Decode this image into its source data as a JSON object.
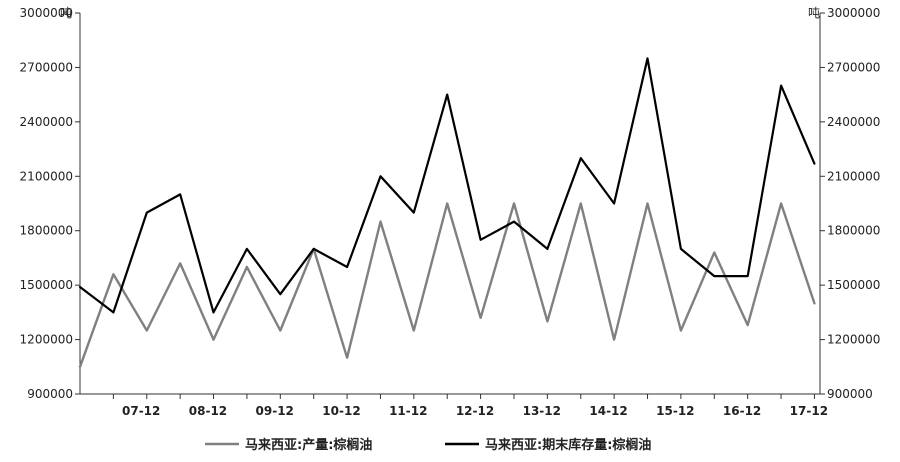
{
  "chart_data": {
    "type": "line",
    "title": "",
    "xlabel": "",
    "ylabel_left": "吨",
    "ylabel_right": "吨",
    "ylim": [
      900000,
      3000000
    ],
    "yticks": [
      900000,
      1200000,
      1500000,
      1800000,
      2100000,
      2400000,
      2700000,
      3000000
    ],
    "ytick_labels": [
      "900000",
      "1200000",
      "1500000",
      "1800000",
      "2100000",
      "2400000",
      "2700000",
      "3000000"
    ],
    "x_start": "2007-01",
    "xticks": [
      "07-12",
      "08-12",
      "09-12",
      "10-12",
      "11-12",
      "12-12",
      "13-12",
      "14-12",
      "15-12",
      "16-12",
      "17-12"
    ],
    "grid": "none",
    "legend_position": "bottom",
    "series": [
      {
        "name": "马来西亚:产量:棕榈油",
        "color": "#808080",
        "x": [
          "2007-01",
          "2007-07",
          "2008-01",
          "2008-07",
          "2009-01",
          "2009-07",
          "2010-01",
          "2010-07",
          "2011-01",
          "2011-07",
          "2012-01",
          "2012-07",
          "2013-01",
          "2013-07",
          "2014-01",
          "2014-07",
          "2015-01",
          "2015-07",
          "2016-01",
          "2016-07",
          "2017-01",
          "2017-07",
          "2018-01"
        ],
        "values": [
          1050000,
          1560000,
          1250000,
          1620000,
          1200000,
          1600000,
          1250000,
          1700000,
          1100000,
          1850000,
          1250000,
          1950000,
          1320000,
          1950000,
          1300000,
          1950000,
          1200000,
          1950000,
          1250000,
          1680000,
          1280000,
          1950000,
          1400000
        ]
      },
      {
        "name": "马来西亚:期末库存量:棕榈油",
        "color": "#000000",
        "x": [
          "2007-01",
          "2007-07",
          "2008-01",
          "2008-07",
          "2009-01",
          "2009-07",
          "2010-01",
          "2010-07",
          "2011-01",
          "2011-07",
          "2012-01",
          "2012-07",
          "2013-01",
          "2013-07",
          "2014-01",
          "2014-07",
          "2015-01",
          "2015-07",
          "2016-01",
          "2016-07",
          "2017-01",
          "2017-07",
          "2018-01"
        ],
        "values": [
          1490000,
          1350000,
          1900000,
          2000000,
          1350000,
          1700000,
          1450000,
          1700000,
          1600000,
          2100000,
          1900000,
          2550000,
          1750000,
          1850000,
          1700000,
          2200000,
          1950000,
          2750000,
          1700000,
          1550000,
          1550000,
          2600000,
          2170000
        ]
      }
    ]
  }
}
